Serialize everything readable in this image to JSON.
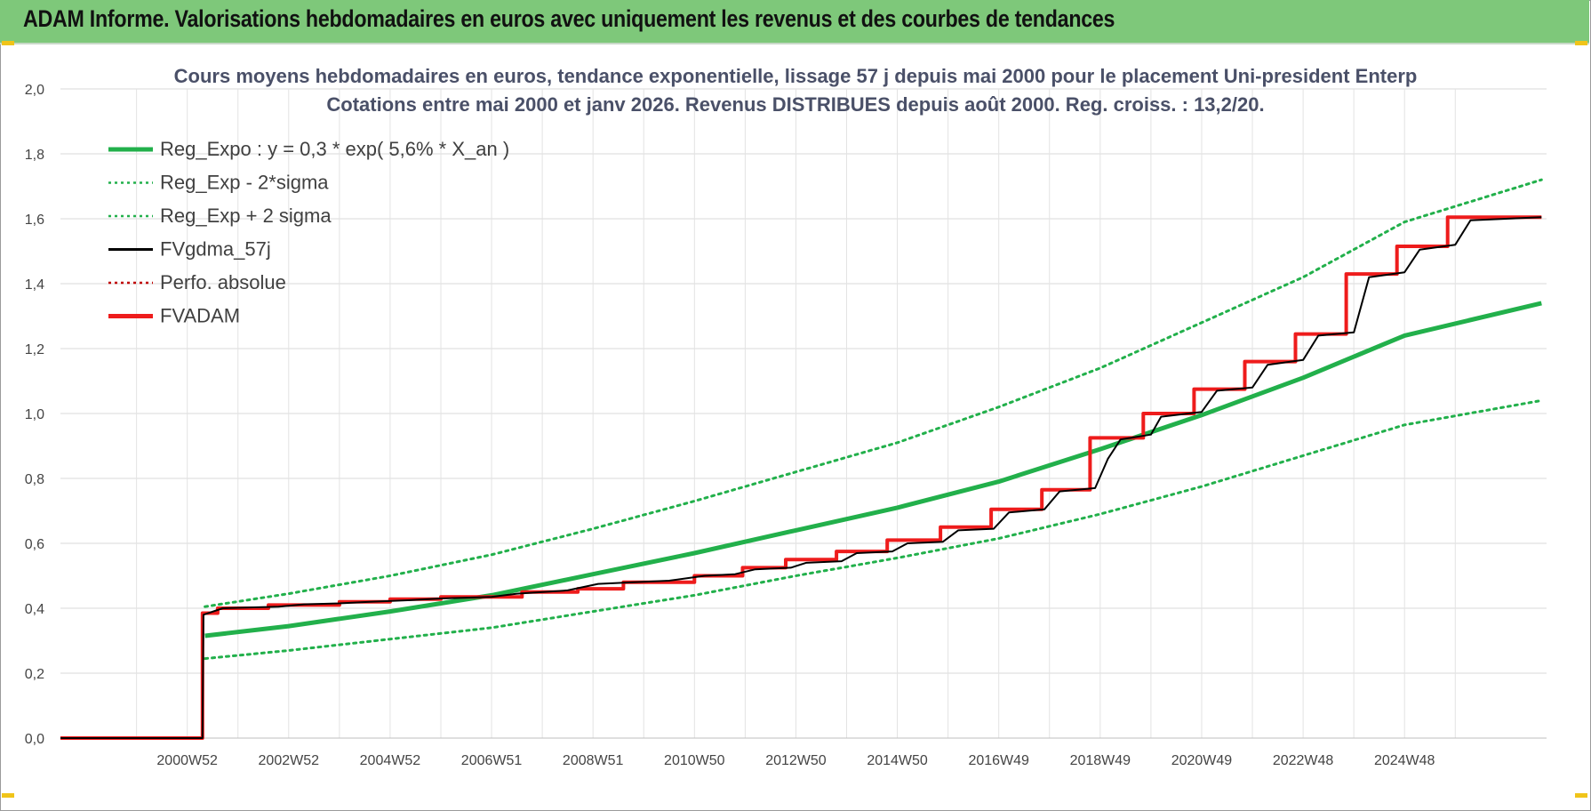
{
  "header": {
    "title": "ADAM Informe. Valorisations hebdomadaires en euros avec uniquement les revenus et des courbes de tendances"
  },
  "chart_data": {
    "type": "line",
    "title": "Cours moyens hebdomadaires en euros, tendance exponentielle, lissage 57 j depuis mai 2000 pour le placement Uni-president Enterp",
    "subtitle": "Cotations entre mai 2000 et janv 2026. Revenus DISTRIBUES depuis août 2000. Reg. croiss. : 13,2/20.",
    "xlabel": "",
    "ylabel": "",
    "ylim": [
      0,
      2
    ],
    "yticks": [
      "0,0",
      "0,2",
      "0,4",
      "0,6",
      "0,8",
      "1,0",
      "1,2",
      "1,4",
      "1,6",
      "1,8",
      "2,0"
    ],
    "xlim": [
      1997.5,
      2026.8
    ],
    "xtick_labels": [
      {
        "label": "2000W52",
        "x": 2000.0
      },
      {
        "label": "2002W52",
        "x": 2002.0
      },
      {
        "label": "2004W52",
        "x": 2004.0
      },
      {
        "label": "2006W51",
        "x": 2006.0
      },
      {
        "label": "2008W51",
        "x": 2008.0
      },
      {
        "label": "2010W50",
        "x": 2010.0
      },
      {
        "label": "2012W50",
        "x": 2012.0
      },
      {
        "label": "2014W50",
        "x": 2014.0
      },
      {
        "label": "2016W49",
        "x": 2016.0
      },
      {
        "label": "2018W49",
        "x": 2018.0
      },
      {
        "label": "2020W49",
        "x": 2020.0
      },
      {
        "label": "2022W48",
        "x": 2022.0
      },
      {
        "label": "2024W48",
        "x": 2024.0
      }
    ],
    "grid": true,
    "legend_position": "top-left",
    "series": [
      {
        "name": "Reg_Expo : y = 0,3 * exp( 5,6% *  X_an )",
        "color": "#22b04b",
        "style": "solid-thick",
        "points": [
          [
            2000.35,
            0.315
          ],
          [
            2002,
            0.345
          ],
          [
            2004,
            0.39
          ],
          [
            2006,
            0.44
          ],
          [
            2008,
            0.505
          ],
          [
            2010,
            0.57
          ],
          [
            2012,
            0.64
          ],
          [
            2014,
            0.71
          ],
          [
            2016,
            0.79
          ],
          [
            2018,
            0.89
          ],
          [
            2020,
            0.995
          ],
          [
            2022,
            1.11
          ],
          [
            2024,
            1.24
          ],
          [
            2026.7,
            1.34
          ]
        ]
      },
      {
        "name": "Reg_Exp - 2*sigma",
        "color": "#22b04b",
        "style": "dotted",
        "points": [
          [
            2000.35,
            0.245
          ],
          [
            2002,
            0.27
          ],
          [
            2004,
            0.305
          ],
          [
            2006,
            0.34
          ],
          [
            2008,
            0.39
          ],
          [
            2010,
            0.44
          ],
          [
            2012,
            0.5
          ],
          [
            2014,
            0.555
          ],
          [
            2016,
            0.615
          ],
          [
            2018,
            0.69
          ],
          [
            2020,
            0.775
          ],
          [
            2022,
            0.87
          ],
          [
            2024,
            0.965
          ],
          [
            2026.7,
            1.04
          ]
        ]
      },
      {
        "name": "Reg_Exp + 2 sigma",
        "color": "#22b04b",
        "style": "dotted",
        "points": [
          [
            2000.35,
            0.405
          ],
          [
            2002,
            0.445
          ],
          [
            2004,
            0.5
          ],
          [
            2006,
            0.565
          ],
          [
            2008,
            0.645
          ],
          [
            2010,
            0.73
          ],
          [
            2012,
            0.82
          ],
          [
            2014,
            0.91
          ],
          [
            2016,
            1.02
          ],
          [
            2018,
            1.14
          ],
          [
            2020,
            1.28
          ],
          [
            2022,
            1.42
          ],
          [
            2024,
            1.59
          ],
          [
            2026.7,
            1.72
          ]
        ]
      },
      {
        "name": "FVgdma_57j",
        "color": "#000000",
        "style": "solid",
        "points": [
          [
            1997.5,
            0
          ],
          [
            2000.3,
            0
          ],
          [
            2000.32,
            0.38
          ],
          [
            2000.7,
            0.4
          ],
          [
            2001.8,
            0.405
          ],
          [
            2002.3,
            0.412
          ],
          [
            2003.0,
            0.415
          ],
          [
            2003.6,
            0.42
          ],
          [
            2004.4,
            0.425
          ],
          [
            2005.0,
            0.43
          ],
          [
            2006.0,
            0.435
          ],
          [
            2006.5,
            0.445
          ],
          [
            2007.5,
            0.455
          ],
          [
            2008.1,
            0.475
          ],
          [
            2008.8,
            0.48
          ],
          [
            2009.5,
            0.485
          ],
          [
            2010.2,
            0.5
          ],
          [
            2010.8,
            0.505
          ],
          [
            2011.2,
            0.52
          ],
          [
            2011.9,
            0.525
          ],
          [
            2012.2,
            0.54
          ],
          [
            2012.9,
            0.545
          ],
          [
            2013.2,
            0.57
          ],
          [
            2013.9,
            0.575
          ],
          [
            2014.2,
            0.6
          ],
          [
            2014.9,
            0.605
          ],
          [
            2015.2,
            0.64
          ],
          [
            2015.9,
            0.645
          ],
          [
            2016.2,
            0.695
          ],
          [
            2016.9,
            0.705
          ],
          [
            2017.2,
            0.76
          ],
          [
            2017.9,
            0.77
          ],
          [
            2018.15,
            0.86
          ],
          [
            2018.4,
            0.92
          ],
          [
            2019.0,
            0.935
          ],
          [
            2019.2,
            0.99
          ],
          [
            2020.0,
            1.005
          ],
          [
            2020.3,
            1.07
          ],
          [
            2021.0,
            1.08
          ],
          [
            2021.3,
            1.15
          ],
          [
            2022.0,
            1.165
          ],
          [
            2022.3,
            1.24
          ],
          [
            2023.0,
            1.25
          ],
          [
            2023.3,
            1.42
          ],
          [
            2024.0,
            1.435
          ],
          [
            2024.3,
            1.505
          ],
          [
            2025.0,
            1.52
          ],
          [
            2025.3,
            1.595
          ],
          [
            2026.7,
            1.605
          ]
        ]
      },
      {
        "name": "Perfo. absolue",
        "color": "#c00000",
        "style": "dotted",
        "points": []
      },
      {
        "name": "FVADAM",
        "color": "#ee1c1c",
        "style": "solid-thick",
        "points": [
          [
            1997.5,
            0
          ],
          [
            2000.3,
            0
          ],
          [
            2000.3,
            0.385
          ],
          [
            2000.6,
            0.385
          ],
          [
            2000.6,
            0.4
          ],
          [
            2001.6,
            0.4
          ],
          [
            2001.6,
            0.41
          ],
          [
            2003.0,
            0.41
          ],
          [
            2003.0,
            0.42
          ],
          [
            2004.0,
            0.42
          ],
          [
            2004.0,
            0.428
          ],
          [
            2005.0,
            0.428
          ],
          [
            2005.0,
            0.435
          ],
          [
            2006.6,
            0.435
          ],
          [
            2006.6,
            0.45
          ],
          [
            2007.7,
            0.45
          ],
          [
            2007.7,
            0.46
          ],
          [
            2008.6,
            0.46
          ],
          [
            2008.6,
            0.48
          ],
          [
            2010.0,
            0.48
          ],
          [
            2010.0,
            0.5
          ],
          [
            2010.95,
            0.5
          ],
          [
            2010.95,
            0.525
          ],
          [
            2011.8,
            0.525
          ],
          [
            2011.8,
            0.55
          ],
          [
            2012.8,
            0.55
          ],
          [
            2012.8,
            0.575
          ],
          [
            2013.8,
            0.575
          ],
          [
            2013.8,
            0.61
          ],
          [
            2014.85,
            0.61
          ],
          [
            2014.85,
            0.65
          ],
          [
            2015.85,
            0.65
          ],
          [
            2015.85,
            0.705
          ],
          [
            2016.85,
            0.705
          ],
          [
            2016.85,
            0.765
          ],
          [
            2017.8,
            0.765
          ],
          [
            2017.8,
            0.925
          ],
          [
            2018.85,
            0.925
          ],
          [
            2018.85,
            1.0
          ],
          [
            2019.85,
            1.0
          ],
          [
            2019.85,
            1.075
          ],
          [
            2020.85,
            1.075
          ],
          [
            2020.85,
            1.16
          ],
          [
            2021.85,
            1.16
          ],
          [
            2021.85,
            1.245
          ],
          [
            2022.85,
            1.245
          ],
          [
            2022.85,
            1.43
          ],
          [
            2023.85,
            1.43
          ],
          [
            2023.85,
            1.515
          ],
          [
            2024.85,
            1.515
          ],
          [
            2024.85,
            1.605
          ],
          [
            2026.7,
            1.605
          ]
        ]
      }
    ]
  }
}
